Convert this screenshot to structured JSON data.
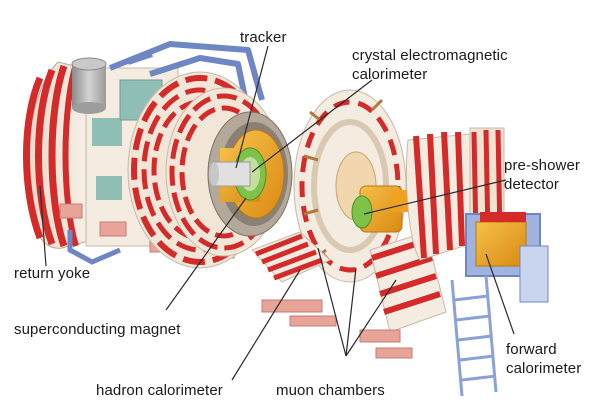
{
  "labels": {
    "tracker": "tracker",
    "ecal_line1": "crystal electromagnetic",
    "ecal_line2": "calorimeter",
    "preshower_line1": "pre-shower",
    "preshower_line2": "detector",
    "return_yoke": "return yoke",
    "magnet": "superconducting magnet",
    "hcal": "hadron calorimeter",
    "muon": "muon chambers",
    "forward_line1": "forward",
    "forward_line2": "calorimeter"
  },
  "colors": {
    "background": "#ffffff",
    "yoke_red": "#d42a2a",
    "yoke_cream": "#f1e6d8",
    "support_blue": "#6f86c4",
    "support_pink": "#e9a49a",
    "tracker_green": "#7ec24a",
    "calorimeter_orange": "#f0a21e",
    "leader_line": "#2a2a2a",
    "cryostat_gray": "#a9a9a9",
    "panel_teal": "#8fbfb4"
  }
}
